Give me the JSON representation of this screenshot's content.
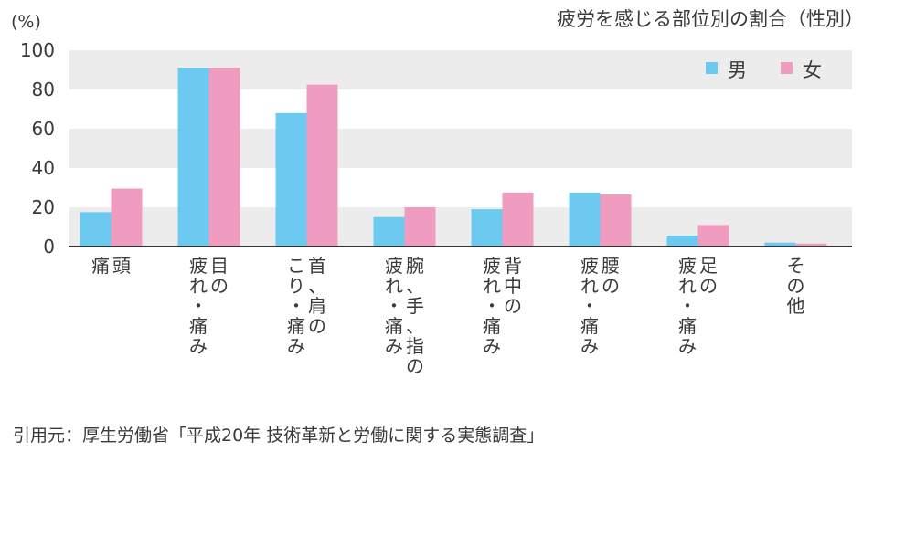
{
  "chart_data": {
    "type": "bar",
    "title": "疲労を感じる部位別の割合（性別）",
    "unit_label": "(%)",
    "ylim": [
      0,
      100
    ],
    "yticks": [
      0,
      20,
      40,
      60,
      80,
      100
    ],
    "grid": "alternating horizontal bands",
    "legend_position": "top-right",
    "categories": [
      [
        "頭",
        "痛"
      ],
      [
        "目の",
        "疲れ・痛み"
      ],
      [
        "首、肩の",
        "こり・痛み"
      ],
      [
        "腕、手、指の",
        "疲れ・痛み"
      ],
      [
        "背中の",
        "疲れ・痛み"
      ],
      [
        "腰の",
        "疲れ・痛み"
      ],
      [
        "足の",
        "疲れ・痛み"
      ],
      [
        "その他"
      ]
    ],
    "series": [
      {
        "name": "男",
        "color": "#6ccaf0",
        "values": [
          17.5,
          91,
          68,
          15,
          19,
          27.5,
          5.5,
          2
        ]
      },
      {
        "name": "女",
        "color": "#f09bc0",
        "values": [
          29.5,
          91,
          82.5,
          20,
          27.5,
          26.5,
          11,
          1.5
        ]
      }
    ]
  },
  "source": "引用元：厚生労働省「平成20年 技術革新と労働に関する実態調査」"
}
